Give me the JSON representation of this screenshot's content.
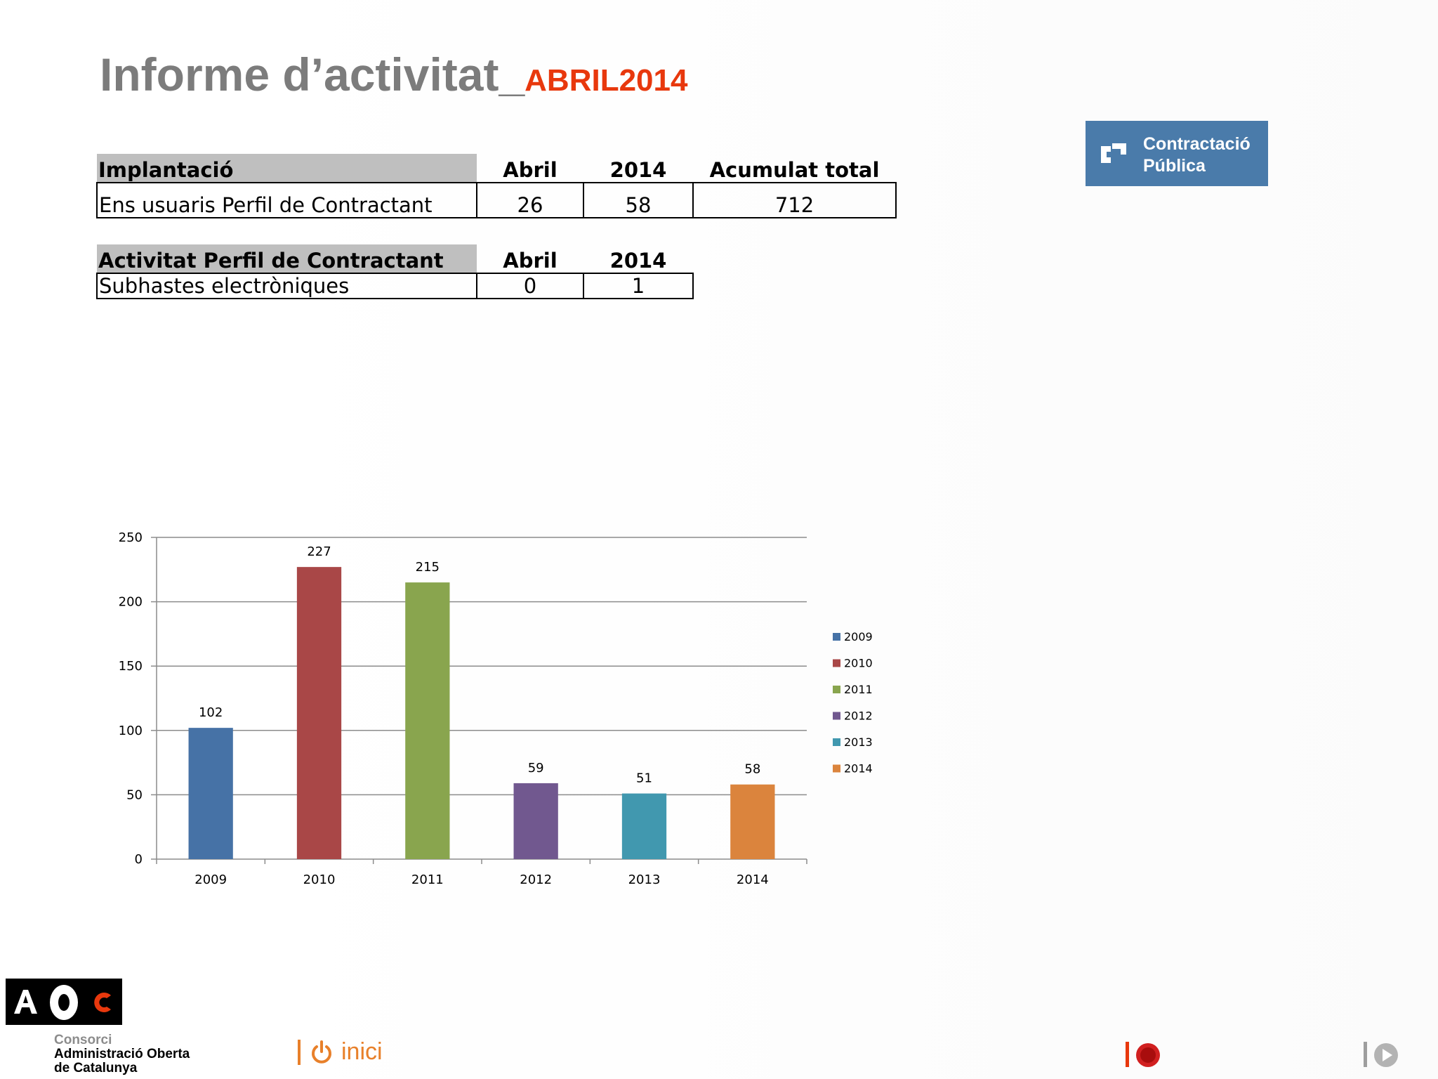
{
  "header": {
    "title_main": "Informe d’activitat_",
    "title_accent": "ABRIL2014"
  },
  "badge": {
    "line1": "Contractació",
    "line2": "Pública",
    "icon": "contractacio-logo-icon"
  },
  "table_implantacio": {
    "headers": [
      "Implantació",
      "Abril",
      "2014",
      "Acumulat total"
    ],
    "rows": [
      [
        "Ens usuaris Perfil de Contractant",
        "26",
        "58",
        "712"
      ]
    ]
  },
  "table_activitat": {
    "headers": [
      "Activitat Perfil de Contractant",
      "Abril",
      "2014"
    ],
    "rows": [
      [
        "Subhastes electròniques",
        "0",
        "1"
      ]
    ]
  },
  "chart_data": {
    "type": "bar",
    "categories": [
      "2009",
      "2010",
      "2011",
      "2012",
      "2013",
      "2014"
    ],
    "values": [
      102,
      227,
      215,
      59,
      51,
      58
    ],
    "colors": [
      "#4672a6",
      "#a94747",
      "#89a54e",
      "#71588f",
      "#4198af",
      "#db843d"
    ],
    "yticks": [
      "0",
      "50",
      "100",
      "150",
      "200",
      "250"
    ],
    "ylim": [
      0,
      250
    ],
    "legend": [
      "2009",
      "2010",
      "2011",
      "2012",
      "2013",
      "2014"
    ],
    "legend_position": "right",
    "grid": true
  },
  "footer": {
    "org_line1": "Consorci",
    "org_line2": "Administració Oberta",
    "org_line3": "de Catalunya",
    "home_label": "inici",
    "home_icon": "power-icon",
    "record_icon": "record-icon",
    "next_icon": "play-icon",
    "accent_orange": "#e8802a",
    "accent_red": "#e8380d"
  }
}
